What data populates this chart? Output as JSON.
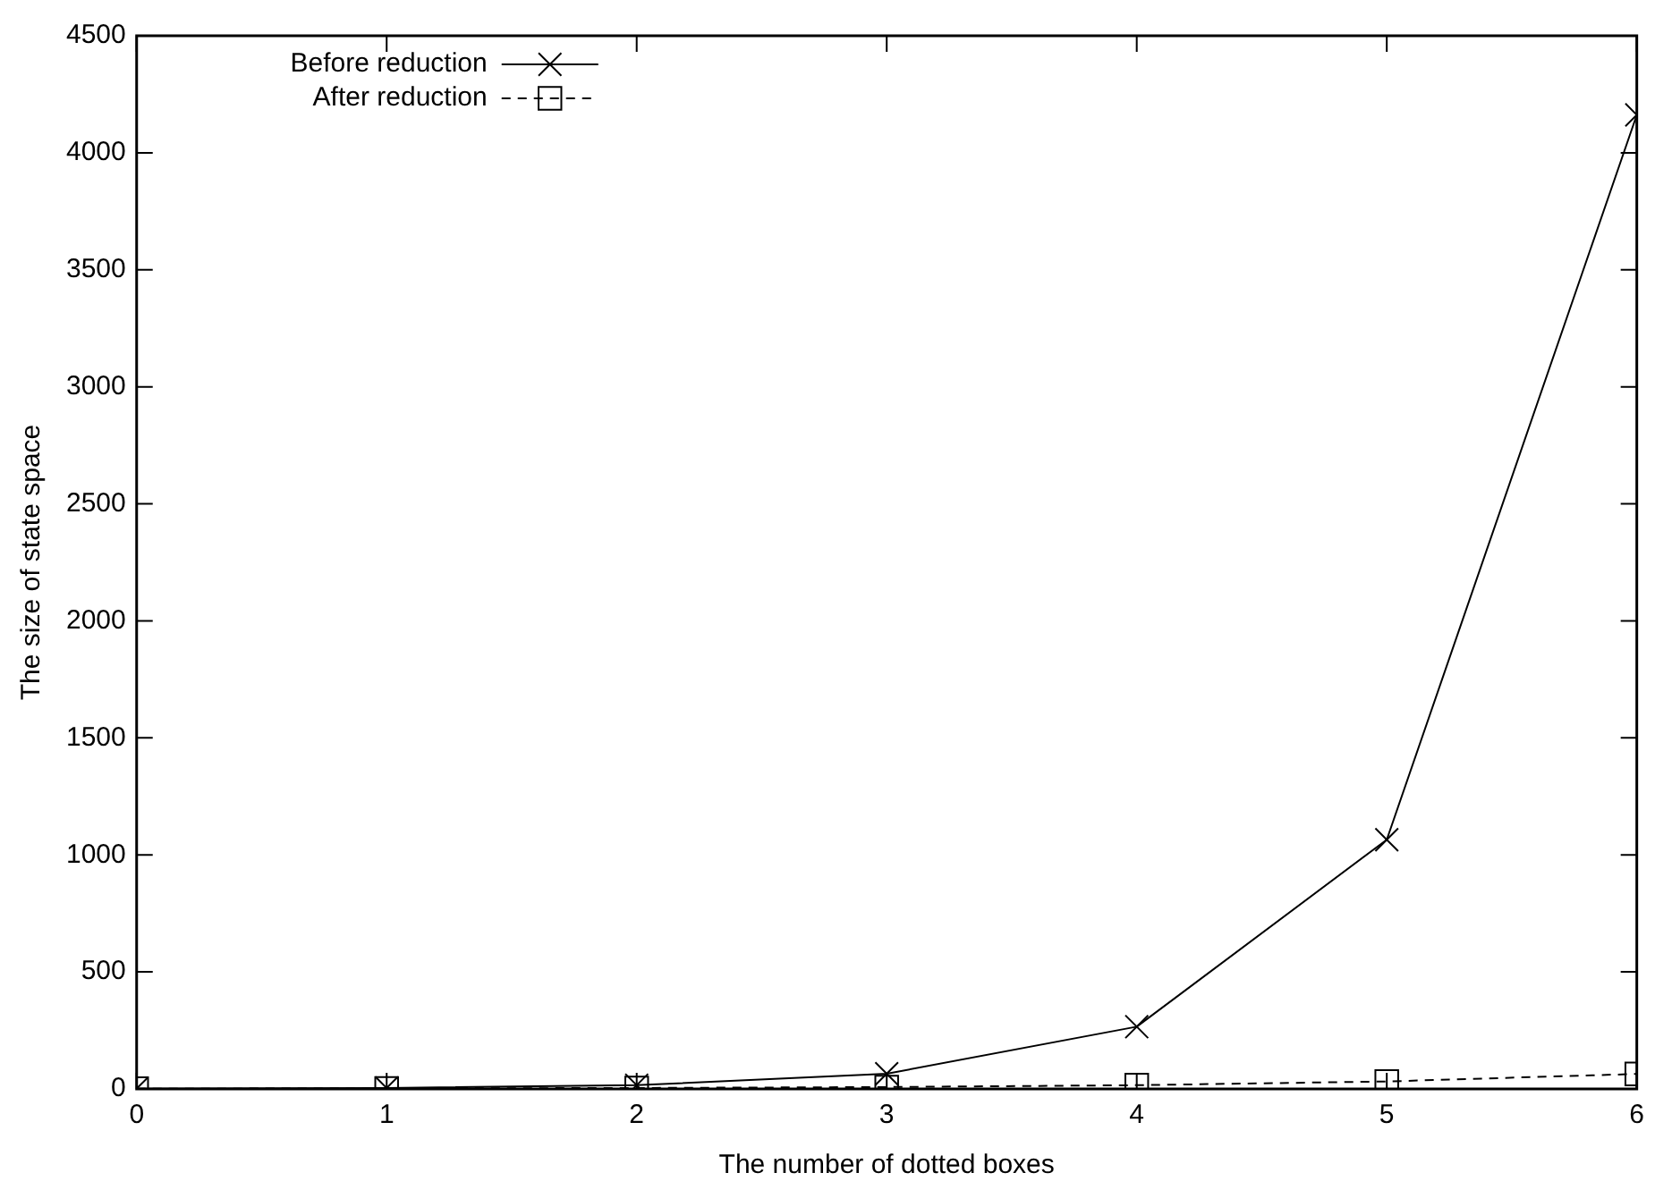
{
  "chart_data": {
    "type": "line",
    "xlabel": "The number of dotted boxes",
    "ylabel": "The size of state space",
    "x": [
      0,
      1,
      2,
      3,
      4,
      5,
      6
    ],
    "series": [
      {
        "name": "Before reduction",
        "color": "#000000",
        "marker": "cross",
        "line_style": "solid",
        "values": [
          1,
          4,
          16,
          65,
          266,
          1065,
          4162
        ]
      },
      {
        "name": "After reduction",
        "color": "#000000",
        "marker": "square",
        "line_style": "dashed",
        "values": [
          1,
          2,
          4,
          8,
          16,
          32,
          64
        ]
      }
    ],
    "xlim": [
      0,
      6
    ],
    "xticks": [
      0,
      1,
      2,
      3,
      4,
      5,
      6
    ],
    "ylim": [
      0,
      4500
    ],
    "yticks": [
      0,
      500,
      1000,
      1500,
      2000,
      2500,
      3000,
      3500,
      4000,
      4500
    ],
    "grid": false,
    "legend": "top left"
  }
}
